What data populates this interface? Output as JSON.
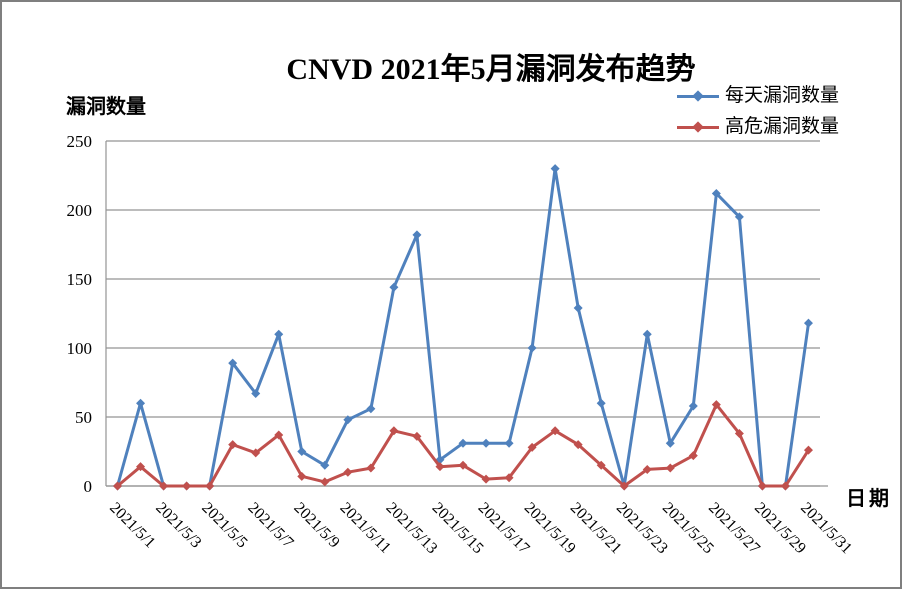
{
  "title": "CNVD 2021年5月漏洞发布趋势",
  "y_axis_title": "漏洞数量",
  "x_axis_title": "日期",
  "legend": [
    {
      "label": "每天漏洞数量",
      "color": "#4F81BD"
    },
    {
      "label": "高危漏洞数量",
      "color": "#C0504D"
    }
  ],
  "colors": {
    "series_daily": "#4F81BD",
    "series_high_risk": "#C0504D",
    "gridline": "#949494",
    "frame_border": "#7f7f7f"
  },
  "chart_data": {
    "type": "line",
    "title": "CNVD 2021年5月漏洞发布趋势",
    "xlabel": "日期",
    "ylabel": "漏洞数量",
    "ylim": [
      0,
      250
    ],
    "y_ticks": [
      0,
      50,
      100,
      150,
      200,
      250
    ],
    "x_label_interval": 2,
    "grid": true,
    "legend_position": "top-right",
    "categories": [
      "2021/5/1",
      "2021/5/2",
      "2021/5/3",
      "2021/5/4",
      "2021/5/5",
      "2021/5/6",
      "2021/5/7",
      "2021/5/8",
      "2021/5/9",
      "2021/5/10",
      "2021/5/11",
      "2021/5/12",
      "2021/5/13",
      "2021/5/14",
      "2021/5/15",
      "2021/5/16",
      "2021/5/17",
      "2021/5/18",
      "2021/5/19",
      "2021/5/20",
      "2021/5/21",
      "2021/5/22",
      "2021/5/23",
      "2021/5/24",
      "2021/5/25",
      "2021/5/26",
      "2021/5/27",
      "2021/5/28",
      "2021/5/29",
      "2021/5/30",
      "2021/5/31"
    ],
    "series": [
      {
        "name": "每天漏洞数量",
        "color": "#4F81BD",
        "values": [
          0,
          60,
          0,
          0,
          0,
          89,
          67,
          110,
          25,
          15,
          48,
          56,
          144,
          182,
          19,
          31,
          31,
          31,
          100,
          230,
          129,
          60,
          0,
          110,
          31,
          58,
          212,
          195,
          0,
          0,
          118
        ]
      },
      {
        "name": "高危漏洞数量",
        "color": "#C0504D",
        "values": [
          0,
          14,
          0,
          0,
          0,
          30,
          24,
          37,
          7,
          3,
          10,
          13,
          40,
          36,
          14,
          15,
          5,
          6,
          28,
          40,
          30,
          15,
          0,
          12,
          13,
          22,
          59,
          38,
          0,
          0,
          26
        ]
      }
    ]
  }
}
